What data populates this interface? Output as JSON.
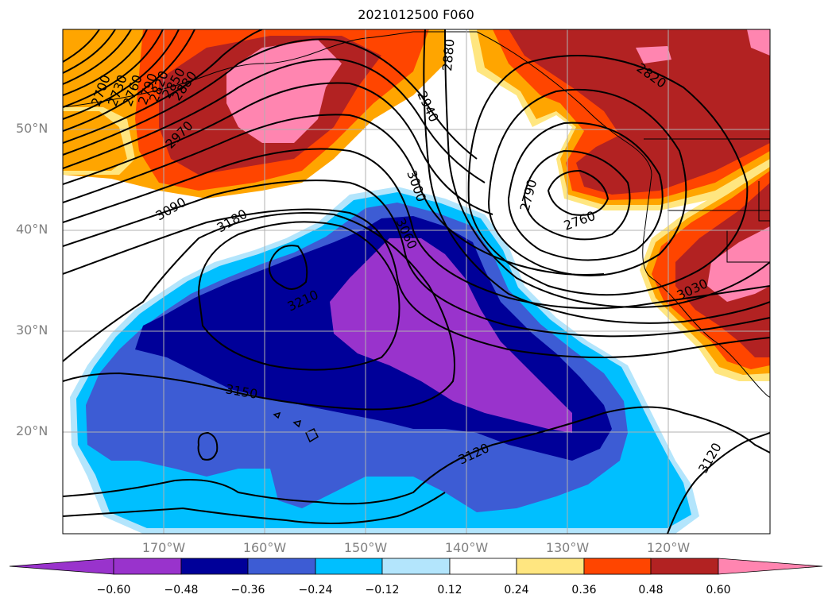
{
  "title": "2021012500 F060",
  "colors": {
    "c_m1": "#9933cc",
    "c_m2": "#000099",
    "c_m3": "#3d5cd4",
    "c_m4": "#00bfff",
    "c_m5": "#b3e5fc",
    "c_0": "#ffffff",
    "c_p1": "#ffe680",
    "c_p2": "#ffa500",
    "c_p3": "#ff4500",
    "c_p4": "#b22222",
    "c_p5": "#ff85b0"
  },
  "lat_labels": [
    "50°N",
    "40°N",
    "30°N",
    "20°N"
  ],
  "lon_labels": [
    "170°W",
    "160°W",
    "150°W",
    "140°W",
    "130°W",
    "120°W"
  ],
  "colorbar": {
    "labels": [
      "−0.60",
      "−0.48",
      "−0.36",
      "−0.24",
      "−0.12",
      "0.12",
      "0.24",
      "0.36",
      "0.48",
      "0.60"
    ]
  },
  "contour_labels": {
    "c2700": "2700",
    "c2730": "2730",
    "c2760a": "2760",
    "c2790a": "2790",
    "c2820a": "2820",
    "c2850": "2850",
    "c2880a": "2880",
    "c2970": "2970",
    "c3090": "3090",
    "c3180": "3180",
    "c3210": "3210",
    "c3150": "3150",
    "c3120a": "3120",
    "c3120b": "3120",
    "c3060": "3060",
    "c3000": "3000",
    "c2940": "2940",
    "c2880b": "2880",
    "c2820b": "2820",
    "c2790b": "2790",
    "c2760b": "2760",
    "c3030": "3030"
  }
}
